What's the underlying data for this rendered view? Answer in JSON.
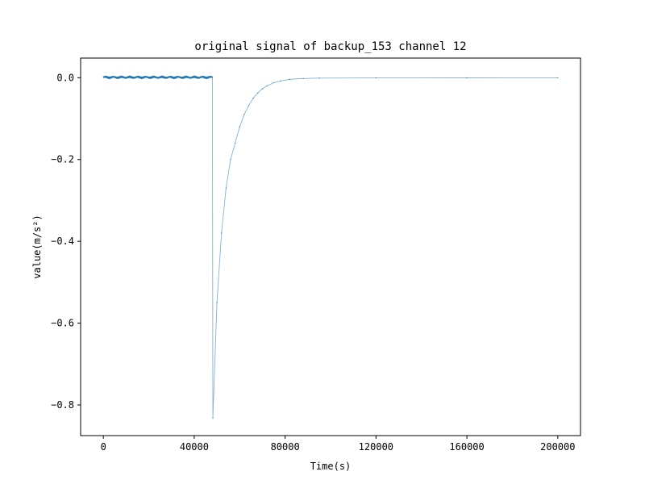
{
  "chart_data": {
    "type": "line",
    "title": "original signal of backup_153 channel 12",
    "xlabel": "Time(s)",
    "ylabel": "value(m/s²)",
    "xlim": [
      -10000,
      210000
    ],
    "ylim": [
      -0.875,
      0.048
    ],
    "xticks": [
      0,
      40000,
      80000,
      120000,
      160000,
      200000
    ],
    "xtick_labels": [
      "0",
      "40000",
      "80000",
      "120000",
      "160000",
      "200000"
    ],
    "yticks": [
      0.0,
      -0.2,
      -0.4,
      -0.6,
      -0.8
    ],
    "ytick_labels": [
      "0.0",
      "−0.2",
      "−0.4",
      "−0.6",
      "−0.8"
    ],
    "grid": false,
    "series": [
      {
        "color": "#1f77b4",
        "points": [
          [
            0,
            0.001
          ],
          [
            48000,
            0.001
          ],
          [
            48200,
            -0.832
          ],
          [
            50000,
            -0.55
          ],
          [
            52000,
            -0.38
          ],
          [
            54000,
            -0.27
          ],
          [
            56000,
            -0.2
          ],
          [
            58000,
            -0.16
          ],
          [
            60000,
            -0.12
          ],
          [
            62000,
            -0.09
          ],
          [
            64000,
            -0.068
          ],
          [
            66000,
            -0.05
          ],
          [
            68000,
            -0.037
          ],
          [
            70000,
            -0.027
          ],
          [
            72000,
            -0.02
          ],
          [
            75000,
            -0.012
          ],
          [
            78000,
            -0.008
          ],
          [
            82000,
            -0.004
          ],
          [
            88000,
            -0.002
          ],
          [
            95000,
            -0.001
          ],
          [
            120000,
            -0.0005
          ],
          [
            160000,
            -0.0003
          ],
          [
            200000,
            -0.0002
          ]
        ]
      }
    ]
  }
}
